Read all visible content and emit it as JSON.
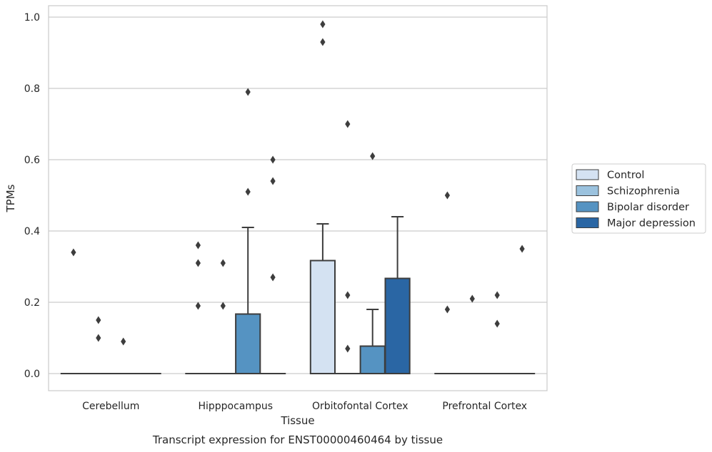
{
  "chart_data": {
    "type": "box",
    "xlabel": "Tissue",
    "ylabel": "TPMs",
    "caption": "Transcript expression for ENST00000460464 by tissue",
    "ylim": [
      -0.045,
      1.03
    ],
    "yticks": [
      0.0,
      0.2,
      0.4,
      0.6,
      0.8,
      1.0
    ],
    "ytick_labels": [
      "0.0",
      "0.2",
      "0.4",
      "0.6",
      "0.8",
      "1.0"
    ],
    "grid": true,
    "legend_position": "right",
    "categories": [
      "Cerebellum",
      "Hipppocampus",
      "Orbitofontal Cortex",
      "Prefrontal Cortex"
    ],
    "series": [
      {
        "name": "Control",
        "color": "#d4e2f2",
        "boxes": [
          {
            "q1": 0,
            "median": 0,
            "q3": 0,
            "whisker_low": 0,
            "whisker_high": 0,
            "outliers": [
              0.34
            ]
          },
          {
            "q1": 0,
            "median": 0,
            "q3": 0,
            "whisker_low": 0,
            "whisker_high": 0,
            "outliers": [
              0.36,
              0.31,
              0.19
            ]
          },
          {
            "q1": 0,
            "median": 0,
            "q3": 0.317,
            "whisker_low": 0,
            "whisker_high": 0.42,
            "outliers": [
              0.98,
              0.93
            ]
          },
          {
            "q1": 0,
            "median": 0,
            "q3": 0,
            "whisker_low": 0,
            "whisker_high": 0,
            "outliers": [
              0.5,
              0.18
            ]
          }
        ]
      },
      {
        "name": "Schizophrenia",
        "color": "#9bc2de",
        "boxes": [
          {
            "q1": 0,
            "median": 0,
            "q3": 0,
            "whisker_low": 0,
            "whisker_high": 0,
            "outliers": [
              0.15,
              0.1
            ]
          },
          {
            "q1": 0,
            "median": 0,
            "q3": 0,
            "whisker_low": 0,
            "whisker_high": 0,
            "outliers": [
              0.31,
              0.19
            ]
          },
          {
            "q1": 0,
            "median": 0,
            "q3": 0,
            "whisker_low": 0,
            "whisker_high": 0,
            "outliers": [
              0.7,
              0.22,
              0.07
            ]
          },
          {
            "q1": 0,
            "median": 0,
            "q3": 0,
            "whisker_low": 0,
            "whisker_high": 0,
            "outliers": [
              0.21
            ]
          }
        ]
      },
      {
        "name": "Bipolar disorder",
        "color": "#5593c2",
        "boxes": [
          {
            "q1": 0,
            "median": 0,
            "q3": 0,
            "whisker_low": 0,
            "whisker_high": 0,
            "outliers": [
              0.09
            ]
          },
          {
            "q1": 0,
            "median": 0,
            "q3": 0.167,
            "whisker_low": 0,
            "whisker_high": 0.41,
            "outliers": [
              0.79,
              0.51
            ]
          },
          {
            "q1": 0,
            "median": 0,
            "q3": 0.077,
            "whisker_low": 0,
            "whisker_high": 0.18,
            "outliers": [
              0.61
            ]
          },
          {
            "q1": 0,
            "median": 0,
            "q3": 0,
            "whisker_low": 0,
            "whisker_high": 0,
            "outliers": [
              0.22,
              0.14
            ]
          }
        ]
      },
      {
        "name": "Major depression",
        "color": "#2a66a4",
        "boxes": [
          {
            "q1": 0,
            "median": 0,
            "q3": 0,
            "whisker_low": 0,
            "whisker_high": 0,
            "outliers": []
          },
          {
            "q1": 0,
            "median": 0,
            "q3": 0,
            "whisker_low": 0,
            "whisker_high": 0,
            "outliers": [
              0.6,
              0.54,
              0.27
            ]
          },
          {
            "q1": 0,
            "median": 0,
            "q3": 0.267,
            "whisker_low": 0,
            "whisker_high": 0.44,
            "outliers": []
          },
          {
            "q1": 0,
            "median": 0,
            "q3": 0,
            "whisker_low": 0,
            "whisker_high": 0,
            "outliers": [
              0.35
            ]
          }
        ]
      }
    ]
  }
}
